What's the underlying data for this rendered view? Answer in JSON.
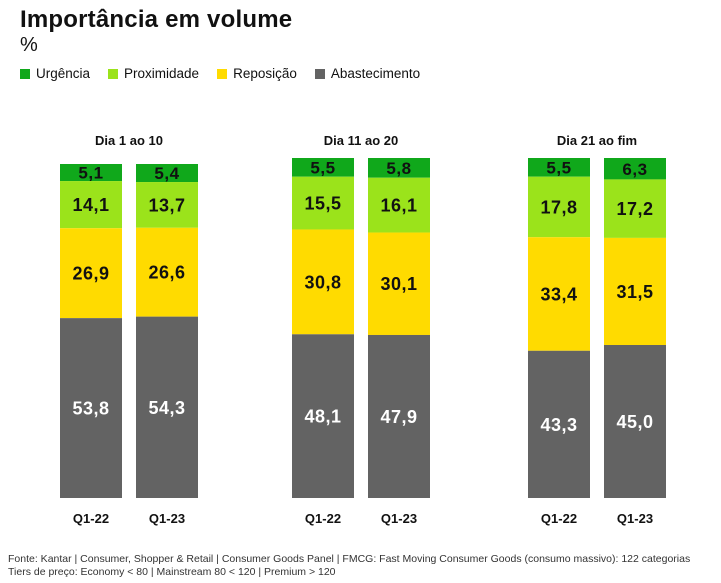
{
  "title": "Importância em volume",
  "unit": "%",
  "source_lines": [
    "Fonte: Kantar | Consumer, Shopper & Retail | Consumer Goods Panel | FMCG: Fast Moving Consumer Goods (consumo massivo): 122 categorias",
    "Tiers de preço: Economy < 80 | Mainstream 80 < 120 | Premium > 120"
  ],
  "chart_data": {
    "type": "bar",
    "stacked": true,
    "normalized": true,
    "legend_position": "top-left",
    "series": [
      {
        "name": "Urgência",
        "color": "#10a81b"
      },
      {
        "name": "Proximidade",
        "color": "#9be31b"
      },
      {
        "name": "Reposição",
        "color": "#ffdb00"
      },
      {
        "name": "Abastecimento",
        "color": "#636363"
      }
    ],
    "groups": [
      {
        "title": "Dia 1 ao 10",
        "bars": [
          {
            "label": "Q1-22",
            "values": [
              5.1,
              14.1,
              26.9,
              53.8
            ],
            "labels": [
              "5,1",
              "14,1",
              "26,9",
              "53,8"
            ]
          },
          {
            "label": "Q1-23",
            "values": [
              5.4,
              13.7,
              26.6,
              54.3
            ],
            "labels": [
              "5,4",
              "13,7",
              "26,6",
              "54,3"
            ]
          }
        ]
      },
      {
        "title": "Dia 11 ao 20",
        "bars": [
          {
            "label": "Q1-22",
            "values": [
              5.5,
              15.5,
              30.8,
              48.1
            ],
            "labels": [
              "5,5",
              "15,5",
              "30,8",
              "48,1"
            ]
          },
          {
            "label": "Q1-23",
            "values": [
              5.8,
              16.1,
              30.1,
              47.9
            ],
            "labels": [
              "5,8",
              "16,1",
              "30,1",
              "47,9"
            ]
          }
        ]
      },
      {
        "title": "Dia 21 ao fim",
        "bars": [
          {
            "label": "Q1-22",
            "values": [
              5.5,
              17.8,
              33.4,
              43.3
            ],
            "labels": [
              "5,5",
              "17,8",
              "33,4",
              "43,3"
            ]
          },
          {
            "label": "Q1-23",
            "values": [
              6.3,
              17.2,
              31.5,
              45.0
            ],
            "labels": [
              "6,3",
              "17,2",
              "31,5",
              "45,0"
            ]
          }
        ]
      }
    ]
  }
}
